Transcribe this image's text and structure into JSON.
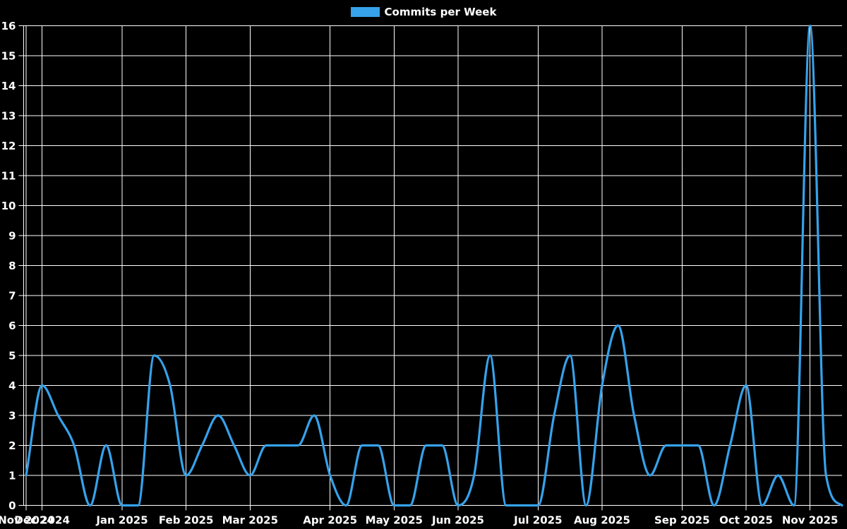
{
  "legend": {
    "label": "Commits per Week",
    "swatch_color": "#36a2eb"
  },
  "chart_data": {
    "type": "line",
    "title": "Commits per Week",
    "xlabel": "",
    "ylabel": "",
    "ylim": [
      0,
      16
    ],
    "grid": true,
    "legend_position": "top-center",
    "n_points": 52,
    "x_unit": "week",
    "values": [
      1,
      4,
      3,
      2,
      0,
      2,
      0,
      0,
      5,
      4,
      1,
      2,
      3,
      2,
      1,
      2,
      2,
      2,
      3,
      1,
      0,
      2,
      2,
      0,
      0,
      2,
      2,
      0,
      1,
      5,
      0,
      0,
      0,
      3,
      5,
      0,
      4,
      6,
      3,
      1,
      2,
      2,
      2,
      0,
      2,
      4,
      0,
      1,
      0,
      16,
      1,
      0
    ],
    "x_ticks": [
      {
        "week": 0,
        "label": "Nov 2024"
      },
      {
        "week": 1,
        "label": "Dec 2024"
      },
      {
        "week": 6,
        "label": "Jan 2025"
      },
      {
        "week": 10,
        "label": "Feb 2025"
      },
      {
        "week": 14,
        "label": "Mar 2025"
      },
      {
        "week": 19,
        "label": "Apr 2025"
      },
      {
        "week": 23,
        "label": "May 2025"
      },
      {
        "week": 27,
        "label": "Jun 2025"
      },
      {
        "week": 32,
        "label": "Jul 2025"
      },
      {
        "week": 36,
        "label": "Aug 2025"
      },
      {
        "week": 41,
        "label": "Sep 2025"
      },
      {
        "week": 45,
        "label": "Oct 2025"
      },
      {
        "week": 49,
        "label": "Nov 2025"
      }
    ],
    "y_tick_labels": [
      "0",
      "1",
      "2",
      "3",
      "4",
      "5",
      "6",
      "7",
      "8",
      "9",
      "10",
      "11",
      "12",
      "13",
      "14",
      "15",
      "16"
    ],
    "colors": {
      "background": "#000000",
      "line": "#36a2eb",
      "grid": "#ffffff",
      "axis": "#ffffff",
      "text": "#ffffff"
    }
  }
}
